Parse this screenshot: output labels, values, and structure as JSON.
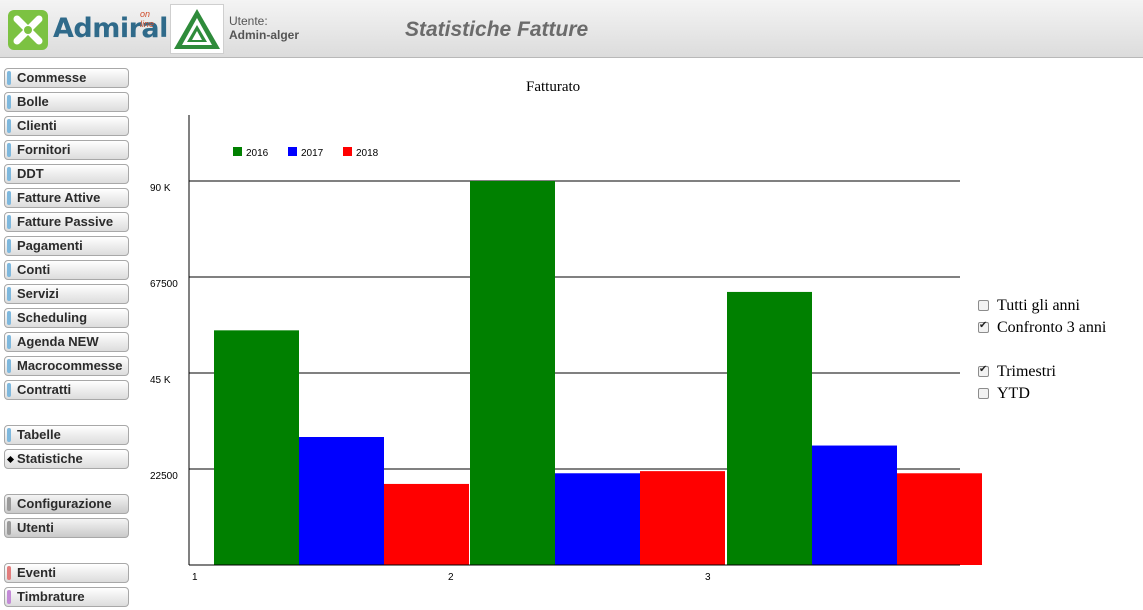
{
  "header": {
    "logo_text": "Admiral",
    "logo_sub": "on line",
    "user_label": "Utente:",
    "user_name": "Admin-alger",
    "page_title": "Statistiche Fatture"
  },
  "sidebar": {
    "items": [
      {
        "label": "Commesse"
      },
      {
        "label": "Bolle"
      },
      {
        "label": "Clienti"
      },
      {
        "label": "Fornitori"
      },
      {
        "label": "DDT"
      },
      {
        "label": "Fatture Attive"
      },
      {
        "label": "Fatture Passive"
      },
      {
        "label": "Pagamenti"
      },
      {
        "label": "Conti"
      },
      {
        "label": "Servizi"
      },
      {
        "label": "Scheduling"
      },
      {
        "label": "Agenda NEW"
      },
      {
        "label": "Macrocommesse"
      },
      {
        "label": "Contratti"
      },
      {
        "label": "Tabelle"
      },
      {
        "label": "Statistiche",
        "active": true
      },
      {
        "label": "Configurazione"
      },
      {
        "label": "Utenti"
      },
      {
        "label": "Eventi"
      },
      {
        "label": "Timbrature"
      }
    ]
  },
  "options": {
    "tutti_gli_anni": {
      "label": "Tutti gli anni",
      "checked": false
    },
    "confronto_3_anni": {
      "label": "Confronto 3 anni",
      "checked": true
    },
    "trimestri": {
      "label": "Trimestri",
      "checked": true
    },
    "ytd": {
      "label": "YTD",
      "checked": false
    }
  },
  "chart_data": {
    "type": "bar",
    "title": "Fatturato",
    "categories": [
      "1",
      "2",
      "3"
    ],
    "series": [
      {
        "name": "2016",
        "color": "#008000",
        "values": [
          55000,
          90000,
          64000
        ]
      },
      {
        "name": "2017",
        "color": "#0000ff",
        "values": [
          30000,
          21500,
          28000
        ]
      },
      {
        "name": "2018",
        "color": "#ff0000",
        "values": [
          19000,
          22000,
          21500
        ]
      }
    ],
    "y_ticks": [
      {
        "value": 22500,
        "label": "22500"
      },
      {
        "value": 45000,
        "label": "45 K"
      },
      {
        "value": 67500,
        "label": "67500"
      },
      {
        "value": 90000,
        "label": "90 K"
      }
    ],
    "ylim": [
      0,
      105000
    ],
    "grid": true,
    "legend_position": "top-left"
  }
}
